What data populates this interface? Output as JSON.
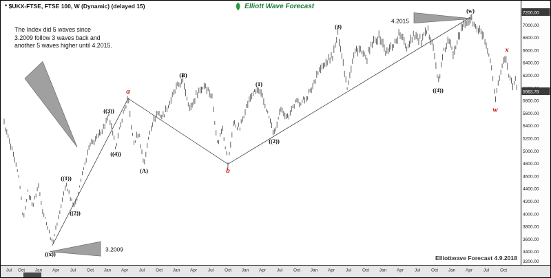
{
  "window": {
    "title": "* $UKX-FTSE, FTSE 100, W (Dynamic) (delayed 15)"
  },
  "logo": {
    "text": "Elliott Wave Forecast",
    "color": "#1b7a3a"
  },
  "annotation": {
    "lines": [
      "The Index did 5 waves since",
      "3.2009 follow 3 waves back and",
      "another 5 waves higher until 4.2015."
    ]
  },
  "credit": {
    "text": "Elliottwave Forecast 4.9.2018"
  },
  "chart_data": {
    "type": "bar",
    "subtype": "weekly-high-low-price-bars",
    "symbol": "$UKX-FTSE",
    "instrument": "FTSE 100",
    "timeframe": "W",
    "title": "* $UKX-FTSE, FTSE 100, W (Dynamic) (delayed 15)",
    "x_range": [
      2008.5,
      2015.96
    ],
    "ylim": [
      3200,
      7200
    ],
    "grid": "off",
    "legend": "none",
    "y_ticks": [
      7200,
      7000,
      6800,
      6600,
      6400,
      6200,
      6000,
      5800,
      5600,
      5400,
      5200,
      5000,
      4800,
      4600,
      4400,
      4200,
      4000,
      3800,
      3600,
      3400,
      3200
    ],
    "last_price": 5963.78,
    "top_axis_badge": 7200.0,
    "x_axis_labels": [
      "Jul",
      "Oct",
      "Jan",
      "Apr",
      "Jul",
      "Oct",
      "Jan",
      "Apr",
      "Jul",
      "Oct",
      "Jan",
      "Apr",
      "Jul",
      "Oct",
      "Jan",
      "Apr",
      "Jul",
      "Oct",
      "Jan",
      "Apr",
      "Jul",
      "Oct",
      "Jan",
      "Apr",
      "Jul",
      "Oct",
      "Jan",
      "Apr",
      "Jul",
      "Oct"
    ],
    "bar_color": "#606060",
    "red_label_color": "#cc1111",
    "price_path": [
      [
        2008.5,
        5450
      ],
      [
        2008.56,
        5200
      ],
      [
        2008.64,
        4900
      ],
      [
        2008.72,
        4550
      ],
      [
        2008.78,
        3900
      ],
      [
        2008.84,
        4350
      ],
      [
        2008.92,
        4150
      ],
      [
        2009.0,
        4450
      ],
      [
        2009.06,
        4050
      ],
      [
        2009.12,
        3850
      ],
      [
        2009.2,
        3530
      ],
      [
        2009.3,
        4000
      ],
      [
        2009.4,
        4480
      ],
      [
        2009.47,
        4250
      ],
      [
        2009.53,
        4120
      ],
      [
        2009.65,
        4700
      ],
      [
        2009.75,
        5100
      ],
      [
        2009.85,
        5200
      ],
      [
        2009.95,
        5400
      ],
      [
        2010.02,
        5538
      ],
      [
        2010.12,
        5060
      ],
      [
        2010.22,
        5550
      ],
      [
        2010.3,
        5833
      ],
      [
        2010.38,
        5100
      ],
      [
        2010.45,
        5300
      ],
      [
        2010.53,
        4790
      ],
      [
        2010.62,
        5350
      ],
      [
        2010.72,
        5600
      ],
      [
        2010.8,
        5550
      ],
      [
        2010.9,
        5750
      ],
      [
        2011.0,
        6000
      ],
      [
        2011.1,
        6105
      ],
      [
        2011.2,
        5650
      ],
      [
        2011.3,
        5900
      ],
      [
        2011.42,
        6060
      ],
      [
        2011.52,
        5850
      ],
      [
        2011.6,
        5100
      ],
      [
        2011.67,
        5400
      ],
      [
        2011.75,
        4791
      ],
      [
        2011.83,
        5450
      ],
      [
        2011.92,
        5350
      ],
      [
        2012.0,
        5650
      ],
      [
        2012.1,
        5900
      ],
      [
        2012.2,
        5966
      ],
      [
        2012.3,
        5700
      ],
      [
        2012.42,
        5260
      ],
      [
        2012.52,
        5650
      ],
      [
        2012.62,
        5550
      ],
      [
        2012.72,
        5750
      ],
      [
        2012.85,
        5800
      ],
      [
        2012.95,
        5950
      ],
      [
        2013.05,
        6250
      ],
      [
        2013.18,
        6400
      ],
      [
        2013.28,
        6550
      ],
      [
        2013.35,
        6875
      ],
      [
        2013.42,
        6400
      ],
      [
        2013.48,
        6023
      ],
      [
        2013.58,
        6550
      ],
      [
        2013.65,
        6620
      ],
      [
        2013.75,
        6450
      ],
      [
        2013.85,
        6700
      ],
      [
        2013.95,
        6820
      ],
      [
        2014.05,
        6550
      ],
      [
        2014.15,
        6700
      ],
      [
        2014.25,
        6850
      ],
      [
        2014.35,
        6650
      ],
      [
        2014.45,
        6880
      ],
      [
        2014.55,
        6730
      ],
      [
        2014.65,
        6900
      ],
      [
        2014.72,
        6750
      ],
      [
        2014.8,
        6070
      ],
      [
        2014.88,
        6550
      ],
      [
        2014.95,
        6750
      ],
      [
        2015.02,
        6550
      ],
      [
        2015.1,
        6850
      ],
      [
        2015.18,
        7000
      ],
      [
        2015.27,
        7122
      ],
      [
        2015.35,
        6950
      ],
      [
        2015.45,
        6850
      ],
      [
        2015.52,
        6550
      ],
      [
        2015.58,
        6300
      ],
      [
        2015.63,
        5768
      ],
      [
        2015.68,
        6100
      ],
      [
        2015.73,
        6365
      ],
      [
        2015.78,
        6487
      ],
      [
        2015.83,
        6200
      ],
      [
        2015.88,
        6050
      ],
      [
        2015.92,
        6150
      ],
      [
        2015.955,
        5963.78
      ]
    ],
    "wave_labels": [
      {
        "text": "((x))",
        "t": 2009.17,
        "price": 3430,
        "placement": "below",
        "color": "#000000"
      },
      {
        "text": "((1))",
        "t": 2009.4,
        "price": 4500,
        "placement": "above",
        "color": "#000000"
      },
      {
        "text": "((2))",
        "t": 2009.53,
        "price": 4080,
        "placement": "below",
        "color": "#000000"
      },
      {
        "text": "((3))",
        "t": 2010.02,
        "price": 5570,
        "placement": "above",
        "color": "#000000"
      },
      {
        "text": "((4))",
        "t": 2010.12,
        "price": 5020,
        "placement": "below",
        "color": "#000000"
      },
      {
        "text": "a",
        "t": 2010.3,
        "price": 5880,
        "placement": "above",
        "color": "#cc1111"
      },
      {
        "text": "(A)",
        "t": 2010.53,
        "price": 4750,
        "placement": "below",
        "color": "#000000"
      },
      {
        "text": "(B)",
        "t": 2011.1,
        "price": 6140,
        "placement": "above",
        "color": "#000000"
      },
      {
        "text": "b",
        "t": 2011.75,
        "price": 4750,
        "placement": "below",
        "color": "#cc1111"
      },
      {
        "text": "(1)",
        "t": 2012.2,
        "price": 6000,
        "placement": "above",
        "color": "#000000"
      },
      {
        "text": "((2))",
        "t": 2012.42,
        "price": 5220,
        "placement": "below",
        "color": "#000000"
      },
      {
        "text": "(3)",
        "t": 2013.35,
        "price": 6910,
        "placement": "above",
        "color": "#000000"
      },
      {
        "text": "((4))",
        "t": 2014.8,
        "price": 6030,
        "placement": "below",
        "color": "#000000"
      },
      {
        "text": "(w)",
        "t": 2015.27,
        "price": 7160,
        "placement": "above",
        "color": "#000000"
      },
      {
        "text": "w",
        "t": 2015.63,
        "price": 5720,
        "placement": "below",
        "color": "#cc1111"
      },
      {
        "text": "x",
        "t": 2015.8,
        "price": 6540,
        "placement": "above",
        "color": "#cc1111"
      }
    ],
    "date_callouts": [
      {
        "text": "3.2009",
        "t": 2009.97,
        "price": 3400,
        "anchor": "start"
      },
      {
        "text": "4.2015",
        "t": 2014.38,
        "price": 7030,
        "anchor": "end"
      }
    ],
    "trendlines": [
      {
        "from": [
          2009.2,
          3500
        ],
        "to": [
          2010.3,
          5833
        ]
      },
      {
        "from": [
          2010.3,
          5833
        ],
        "to": [
          2011.75,
          4791
        ]
      },
      {
        "from": [
          2011.75,
          4791
        ],
        "to": [
          2015.27,
          7122
        ]
      }
    ],
    "annotation_triangles": [
      {
        "name": "wedge-to-wave-3",
        "pts": [
          [
            2008.8,
            6150
          ],
          [
            2009.06,
            6420
          ],
          [
            2009.56,
            5060
          ]
        ]
      },
      {
        "name": "wedge-to-2009-low",
        "pts": [
          [
            2009.9,
            3560
          ],
          [
            2009.9,
            3330
          ],
          [
            2009.16,
            3400
          ]
        ]
      },
      {
        "name": "wedge-to-2015-top",
        "pts": [
          [
            2014.45,
            7195
          ],
          [
            2014.45,
            7030
          ],
          [
            2015.3,
            7100
          ]
        ]
      }
    ]
  }
}
